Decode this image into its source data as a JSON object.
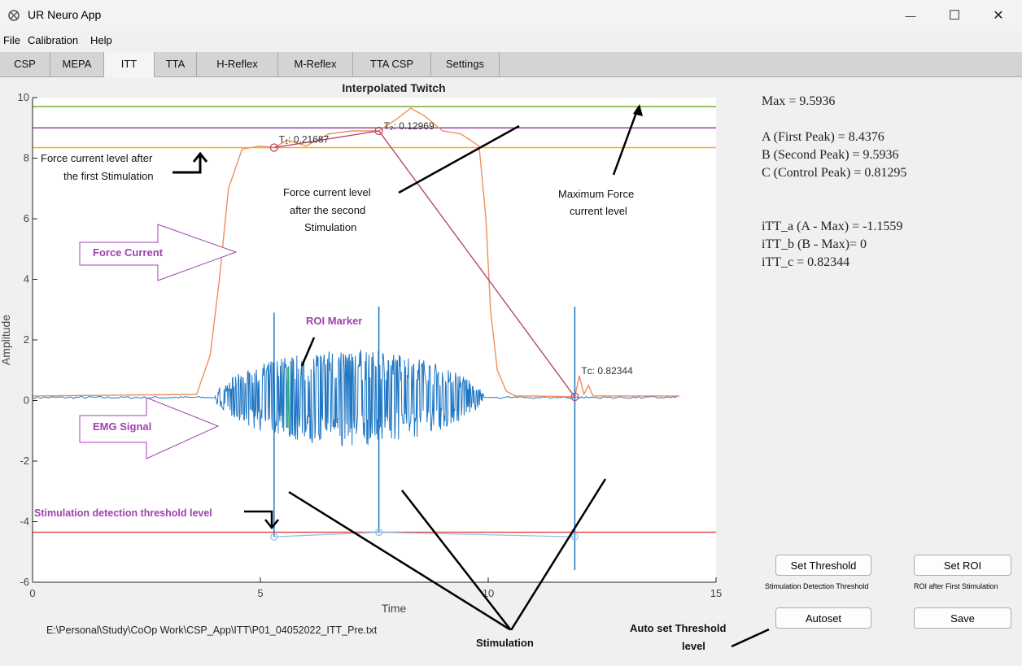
{
  "window": {
    "title": "UR Neuro App",
    "minimize_glyph": "—",
    "maximize_glyph": "☐",
    "close_glyph": "✕"
  },
  "menu": [
    "File",
    "Calibration",
    "Help"
  ],
  "tabs": [
    "CSP",
    "MEPA",
    "ITT",
    "TTA",
    "H-Reflex",
    "M-Reflex",
    "TTA CSP",
    "Settings"
  ],
  "active_tab": "ITT",
  "colors": {
    "force": "#ee8f5b",
    "emg": "#1f77c4",
    "threshold": "#e8504a",
    "max_line": "#77ac30",
    "second_line": "#8e44ad",
    "first_line": "#edb120",
    "marker_line": "#b84a6a",
    "roi": "#2ecc40",
    "callout": "#a040b0",
    "stim_markers": "#8cc4ec"
  },
  "plot": {
    "title": "Interpolated Twitch",
    "xlabel": "Time",
    "ylabel": "Amplitude",
    "xticks": [
      "0",
      "5",
      "10",
      "15"
    ],
    "yticks": [
      "10",
      "8",
      "6",
      "4",
      "2",
      "0",
      "-2",
      "-4",
      "-6"
    ],
    "t1_label": "T₁: 0.21687",
    "t2_label": "T₂: 0.12969",
    "tc_label": "Tᴄ: 0.82344"
  },
  "chart_data": {
    "type": "line",
    "title": "Interpolated Twitch",
    "xlabel": "Time",
    "ylabel": "Amplitude",
    "xlim": [
      0,
      15
    ],
    "ylim": [
      -6,
      10
    ],
    "horizontal_lines": [
      {
        "y": 9.7,
        "color": "#77ac30"
      },
      {
        "y": 9.0,
        "color": "#8e44ad"
      },
      {
        "y": 8.35,
        "color": "#edb120"
      },
      {
        "y": -4.35,
        "color": "#e8504a"
      }
    ],
    "force_series": {
      "x": [
        0,
        3.6,
        3.9,
        4.1,
        4.3,
        4.6,
        5.0,
        5.3,
        5.6,
        6.0,
        6.5,
        7.0,
        7.6,
        8.0,
        8.3,
        8.6,
        9.0,
        9.4,
        9.8,
        9.95,
        10.05,
        10.2,
        10.4,
        10.6,
        11.0,
        11.9,
        12.0,
        12.1,
        12.2,
        12.3,
        14.2
      ],
      "y": [
        0.15,
        0.2,
        1.5,
        4.0,
        7.0,
        8.3,
        8.4,
        8.35,
        8.6,
        8.4,
        8.8,
        8.9,
        8.9,
        9.3,
        9.65,
        9.4,
        8.9,
        8.8,
        8.4,
        6.0,
        3.0,
        1.0,
        0.3,
        0.15,
        0.15,
        0.12,
        0.82,
        0.2,
        0.5,
        0.15,
        0.15
      ]
    },
    "emg_series": {
      "x_start": 4.0,
      "x_end": 10.2,
      "baseline": 0.1,
      "amplitude_peak": 1.6
    },
    "stimulation_spikes": [
      {
        "x": 5.3,
        "top": 2.9,
        "bottom": -4.5
      },
      {
        "x": 7.6,
        "top": 3.1,
        "bottom": -4.35
      },
      {
        "x": 11.9,
        "top": 3.1,
        "bottom": -5.6
      }
    ],
    "twitch_markers": [
      {
        "label": "T₁",
        "x": 5.3,
        "y": 8.35,
        "value": 0.21687
      },
      {
        "label": "T₂",
        "x": 7.6,
        "y": 8.9,
        "value": 0.12969
      },
      {
        "label": "Tᴄ",
        "x": 11.9,
        "y": 0.12,
        "value": 0.82344
      }
    ],
    "roi_marker": {
      "x": 5.6,
      "y_top": 1.1,
      "y_bottom": -0.9
    }
  },
  "annotations": {
    "force_first": [
      "Force current level after",
      "the first Stimulation"
    ],
    "force_second": [
      "Force current level",
      "after the second",
      "Stimulation"
    ],
    "max_force": [
      "Maximum Force",
      "current level"
    ],
    "force_current": "Force Current",
    "emg_signal": "EMG Signal",
    "roi_marker": "ROI Marker",
    "stim_threshold": "Stimulation detection threshold level",
    "stimulation": "Stimulation",
    "auto_set": [
      "Auto set Threshold",
      "level"
    ]
  },
  "stats": {
    "max": "Max = 9.5936",
    "a": "A (First Peak) = 8.4376",
    "b": "B (Second Peak) = 9.5936",
    "c": "C (Control Peak) = 0.81295",
    "itt_a": "iTT_a (A - Max) = -1.1559",
    "itt_b": "iTT_b (B - Max)= 0",
    "itt_c": "iTT_c = 0.82344"
  },
  "buttons": {
    "set_threshold": "Set Threshold",
    "set_threshold_caption": "Stimulation Detection Threshold",
    "set_roi": "Set ROI",
    "set_roi_caption": "ROI after First Stimulation",
    "autoset": "Autoset",
    "save": "Save"
  },
  "file_path": "E:\\Personal\\Study\\CoOp Work\\CSP_App\\ITT\\P01_04052022_ITT_Pre.txt"
}
